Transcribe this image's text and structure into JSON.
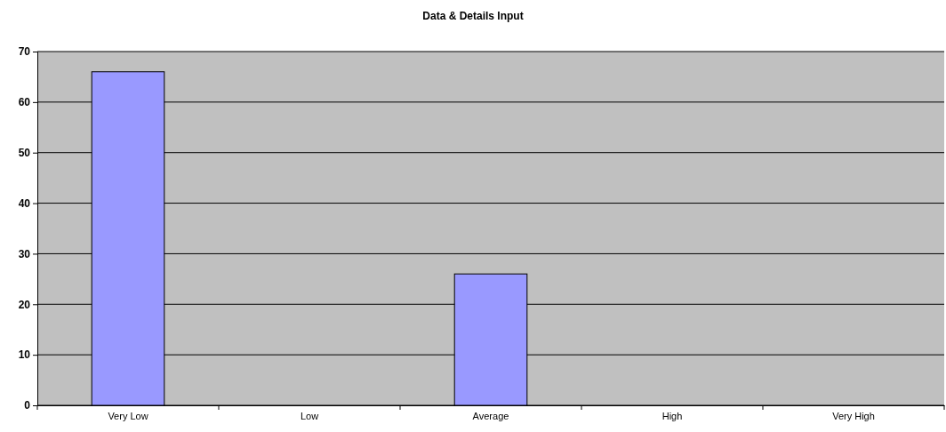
{
  "chart_data": {
    "type": "bar",
    "title": "Data & Details Input",
    "categories": [
      "Very Low",
      "Low",
      "Average",
      "High",
      "Very High"
    ],
    "values": [
      66,
      0,
      26,
      0,
      0
    ],
    "color": "#9999ff",
    "ylim": [
      0,
      70
    ],
    "yticks": [
      0,
      10,
      20,
      30,
      40,
      50,
      60,
      70
    ],
    "grid": "y"
  }
}
